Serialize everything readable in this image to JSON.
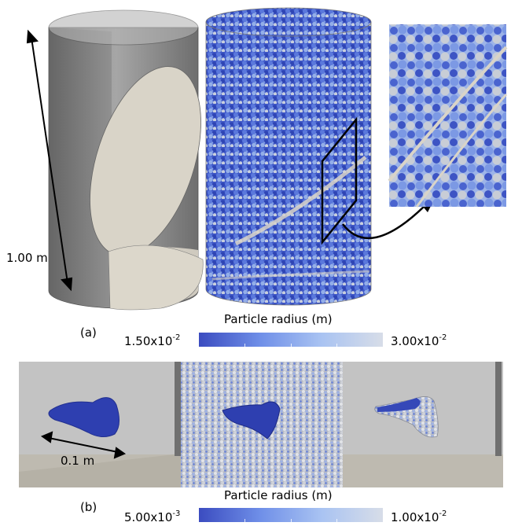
{
  "panel_a": {
    "label": "(a)",
    "dimension_label": "1.00 m",
    "colorbar": {
      "title": "Particle radius (m)",
      "min_mantissa": "1.50x10",
      "min_exponent": "-2",
      "max_mantissa": "3.00x10",
      "max_exponent": "-2"
    }
  },
  "panel_b": {
    "label": "(b)",
    "dimension_label": "0.1 m",
    "colorbar": {
      "title": "Particle radius (m)",
      "min_mantissa": "5.00x10",
      "min_exponent": "-3",
      "max_mantissa": "1.00x10",
      "max_exponent": "-2"
    }
  },
  "colors": {
    "colormap_low": "#3b4cc0",
    "colormap_high": "#d7dde8",
    "cylinder_grey": "#8e8e8e",
    "plane_fill": "#d9d4c8"
  }
}
